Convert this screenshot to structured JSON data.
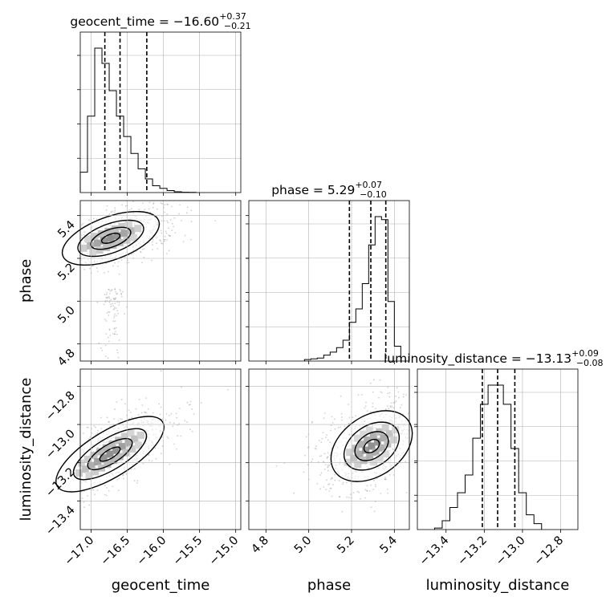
{
  "chart_data": {
    "type": "corner",
    "parameters": [
      {
        "name": "geocent_time",
        "median": "-16.60",
        "plus": "+0.37",
        "minus": "-0.21",
        "range": [
          -17.15,
          -14.93
        ],
        "ticks": [
          -17.0,
          -16.5,
          -16.0,
          -15.5,
          -15.0
        ],
        "tick_labels": [
          "−17.0",
          "−16.5",
          "−16.0",
          "−15.5",
          "−15.0"
        ],
        "quantiles": [
          -16.81,
          -16.6,
          -16.23
        ],
        "histogram": {
          "edges": [
            -17.15,
            -17.05,
            -16.95,
            -16.85,
            -16.75,
            -16.65,
            -16.55,
            -16.45,
            -16.35,
            -16.25,
            -16.15,
            -16.05,
            -15.95,
            -15.85,
            -15.75,
            -15.65,
            -15.55
          ],
          "counts": [
            0.12,
            0.45,
            0.85,
            0.76,
            0.6,
            0.45,
            0.33,
            0.23,
            0.14,
            0.08,
            0.04,
            0.025,
            0.012,
            0.005,
            0.002,
            0.001
          ]
        }
      },
      {
        "name": "phase",
        "median": "5.29",
        "plus": "+0.07",
        "minus": "-0.10",
        "range": [
          4.72,
          5.47
        ],
        "ticks": [
          4.8,
          5.0,
          5.2,
          5.4
        ],
        "tick_labels": [
          "4.8",
          "5.0",
          "5.2",
          "5.4"
        ],
        "quantiles": [
          5.19,
          5.29,
          5.36
        ],
        "histogram": {
          "edges": [
            4.98,
            5.01,
            5.04,
            5.07,
            5.1,
            5.13,
            5.16,
            5.19,
            5.22,
            5.25,
            5.28,
            5.31,
            5.34,
            5.37,
            5.4,
            5.43
          ],
          "counts": [
            0.01,
            0.015,
            0.02,
            0.04,
            0.06,
            0.09,
            0.14,
            0.26,
            0.35,
            0.52,
            0.78,
            0.97,
            0.95,
            0.4,
            0.1
          ]
        }
      },
      {
        "name": "luminosity_distance",
        "median": "-13.13",
        "plus": "+0.09",
        "minus": "-0.08",
        "range": [
          -13.55,
          -12.71
        ],
        "ticks": [
          -13.4,
          -13.2,
          -13.0,
          -12.8
        ],
        "tick_labels": [
          "−13.4",
          "−13.2",
          "−13.0",
          "−12.8"
        ],
        "quantiles": [
          -13.21,
          -13.13,
          -13.04
        ],
        "histogram": {
          "edges": [
            -13.46,
            -13.42,
            -13.38,
            -13.34,
            -13.3,
            -13.26,
            -13.22,
            -13.18,
            -13.14,
            -13.1,
            -13.06,
            -13.02,
            -12.98,
            -12.94,
            -12.9
          ],
          "counts": [
            0.01,
            0.06,
            0.15,
            0.25,
            0.37,
            0.62,
            0.85,
            0.98,
            0.98,
            0.85,
            0.55,
            0.25,
            0.1,
            0.04
          ]
        }
      }
    ],
    "pairs": [
      {
        "x": "geocent_time",
        "y": "phase",
        "center": [
          -16.75,
          5.28
        ]
      },
      {
        "x": "geocent_time",
        "y": "luminosity_distance",
        "center": [
          -16.78,
          -13.15
        ]
      },
      {
        "x": "phase",
        "y": "luminosity_distance",
        "center": [
          5.32,
          -13.11
        ]
      }
    ],
    "grid": true
  }
}
